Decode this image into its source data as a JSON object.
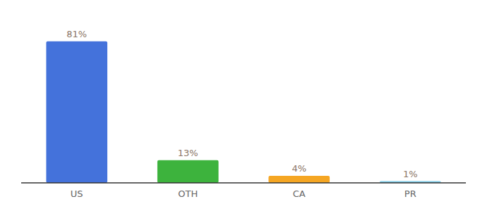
{
  "chart_data": {
    "type": "bar",
    "categories": [
      "US",
      "OTH",
      "CA",
      "PR"
    ],
    "values": [
      81,
      13,
      4,
      1
    ],
    "value_labels": [
      "81%",
      "13%",
      "4%",
      "1%"
    ],
    "colors": [
      "#4472db",
      "#3db33d",
      "#f5a623",
      "#7ec8e3"
    ],
    "ylim": [
      0,
      95
    ],
    "data_labels": true,
    "tick_labels": "x"
  }
}
